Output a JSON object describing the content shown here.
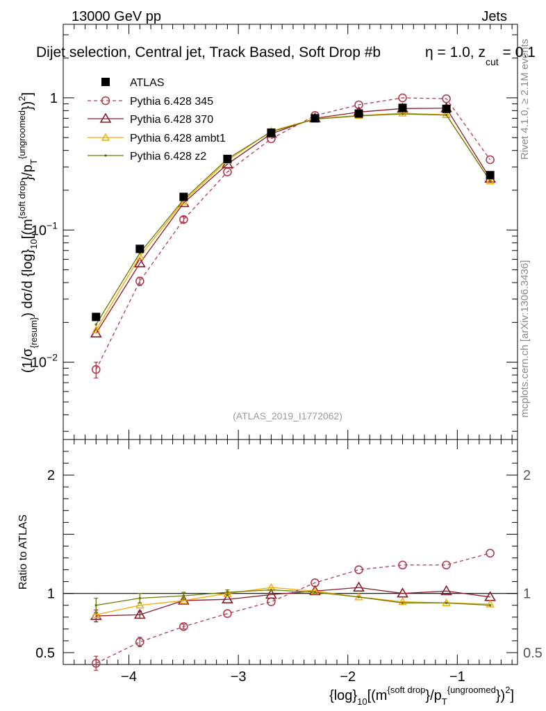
{
  "header": {
    "left": "13000 GeV pp",
    "right": "Jets",
    "title": "Dijet selection, Central jet, Track Based, Soft Drop #beta = 1.0, z_{cut} = 0.1",
    "title_left": "Dijet selection, Central jet, Track Based, Soft Drop #b",
    "title_right_prefix": "η = 1.0, z",
    "title_sub": "cut",
    "title_right_suffix": " = 0.1"
  },
  "side_labels": {
    "rivet": "Rivet 4.1.0, ≥ 2.1M events",
    "mcplots": "mcplots.cern.ch [arXiv:1306.3436]"
  },
  "analysis_tag": "(ATLAS_2019_I1772062)",
  "colors": {
    "atlas": "#000000",
    "p345": "#b03a50",
    "p370": "#8b1a2b",
    "ambt1": "#f5a800",
    "z2": "#6b7a00"
  },
  "chart_data": [
    {
      "type": "scatter",
      "panel": "main",
      "yscale": "log",
      "ylabel": "(1/σ_{resum}) dσ/d {log}_{10}[(m^{soft drop}/p_T^{ungroomed})^2]",
      "xlim": [
        -4.6,
        -0.45
      ],
      "ylim": [
        0.0026,
        3.6
      ],
      "yticks": [
        {
          "v": 0.01,
          "base": "10",
          "exp": "−2"
        },
        {
          "v": 0.1,
          "base": "10",
          "exp": "−1"
        },
        {
          "v": 1,
          "label": "1"
        }
      ],
      "x": [
        -4.3,
        -3.9,
        -3.5,
        -3.1,
        -2.7,
        -2.3,
        -1.9,
        -1.5,
        -1.1,
        -0.7
      ],
      "series": [
        {
          "name": "ATLAS",
          "key": "atlas",
          "marker": "square",
          "values": [
            0.022,
            0.072,
            0.178,
            0.345,
            0.545,
            0.7,
            0.76,
            0.84,
            0.825,
            0.26
          ]
        },
        {
          "name": "Pythia 6.428 345",
          "key": "p345",
          "marker": "circle",
          "dashed": true,
          "values": [
            0.0088,
            0.041,
            0.12,
            0.275,
            0.49,
            0.735,
            0.885,
            1.0,
            0.985,
            0.34
          ],
          "errors": [
            0.0012,
            0.003,
            0.006
          ]
        },
        {
          "name": "Pythia 6.428 370",
          "key": "p370",
          "marker": "triangle",
          "values": [
            0.0165,
            0.056,
            0.16,
            0.315,
            0.535,
            0.7,
            0.78,
            0.83,
            0.835,
            0.245
          ]
        },
        {
          "name": "Pythia 6.428 ambt1",
          "key": "ambt1",
          "marker": "triangle-small",
          "values": [
            0.0175,
            0.063,
            0.165,
            0.335,
            0.56,
            0.695,
            0.735,
            0.765,
            0.745,
            0.235
          ]
        },
        {
          "name": "Pythia 6.428 z2",
          "key": "z2",
          "marker": "dot",
          "values": [
            0.0193,
            0.067,
            0.17,
            0.345,
            0.555,
            0.69,
            0.73,
            0.755,
            0.74,
            0.235
          ]
        }
      ]
    },
    {
      "type": "scatter",
      "panel": "ratio",
      "ylabel": "Ratio to ATLAS",
      "xlabel_main": "{log}",
      "xlabel_sub": "10",
      "xlabel_mid": "[(m",
      "xlabel_sup1": "{soft drop",
      "xlabel_mid2": "}/p",
      "xlabel_sub2": "T",
      "xlabel_sup2": "{ungroomed",
      "xlabel_end": "})",
      "xlabel_sup3": "2",
      "xlabel_tail": "]",
      "xlim": [
        -4.6,
        -0.45
      ],
      "ylim": [
        0.4,
        2.3
      ],
      "xticks": [
        {
          "v": -4,
          "label": "−4"
        },
        {
          "v": -3,
          "label": "−3"
        },
        {
          "v": -2,
          "label": "−2"
        },
        {
          "v": -1,
          "label": "−1"
        }
      ],
      "yticks": [
        {
          "v": 0.5,
          "label": "0.5"
        },
        {
          "v": 1,
          "label": "1"
        },
        {
          "v": 2,
          "label": "2"
        }
      ],
      "reference_line": 1,
      "x": [
        -4.3,
        -3.9,
        -3.5,
        -3.1,
        -2.7,
        -2.3,
        -1.9,
        -1.5,
        -1.1,
        -0.7
      ],
      "series": [
        {
          "name": "Pythia 6.428 345",
          "key": "p345",
          "marker": "circle",
          "dashed": true,
          "values": [
            0.41,
            0.59,
            0.72,
            0.83,
            0.93,
            1.09,
            1.2,
            1.24,
            1.24,
            1.34
          ],
          "errors": [
            0.06,
            0.04,
            0.02
          ]
        },
        {
          "name": "Pythia 6.428 370",
          "key": "p370",
          "marker": "triangle",
          "values": [
            0.81,
            0.82,
            0.94,
            0.95,
            0.99,
            1.02,
            1.05,
            1.0,
            1.02,
            0.97
          ],
          "errors": [
            0.05,
            0.03
          ]
        },
        {
          "name": "Pythia 6.428 ambt1",
          "key": "ambt1",
          "marker": "triangle-small",
          "values": [
            0.82,
            0.9,
            0.94,
            1.0,
            1.05,
            1.02,
            0.97,
            0.93,
            0.92,
            0.91
          ]
        },
        {
          "name": "Pythia 6.428 z2",
          "key": "z2",
          "marker": "dot",
          "values": [
            0.9,
            0.96,
            0.98,
            1.01,
            1.03,
            1.01,
            0.97,
            0.92,
            0.92,
            0.9
          ],
          "errors": [
            0.06,
            0.04,
            0.03,
            0.02
          ]
        }
      ]
    }
  ]
}
